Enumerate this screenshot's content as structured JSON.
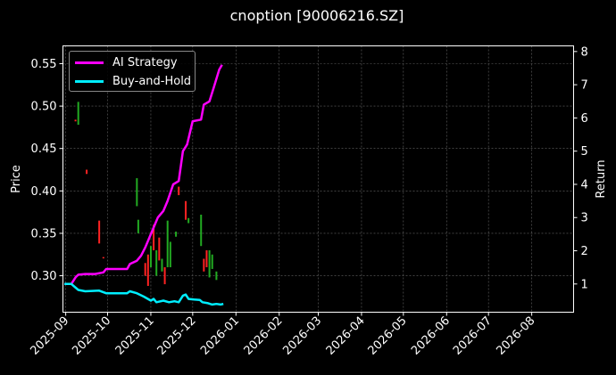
{
  "chart_data": {
    "type": "line",
    "title": "cnoption [90006216.SZ]",
    "xlabel": "",
    "ylabel": "Price",
    "y2label": "Return",
    "x_ticks": [
      "2025-09",
      "2025-10",
      "2025-11",
      "2025-12",
      "2026-01",
      "2026-02",
      "2026-03",
      "2026-04",
      "2026-05",
      "2026-06",
      "2026-07",
      "2026-08"
    ],
    "xlim": [
      "2025-08-30",
      "2026-08-31"
    ],
    "ylim": [
      0.257,
      0.571
    ],
    "y_ticks": [
      0.3,
      0.35,
      0.4,
      0.45,
      0.5,
      0.55
    ],
    "y2lim": [
      0.15,
      8.17
    ],
    "y2_ticks": [
      1,
      2,
      3,
      4,
      5,
      6,
      7,
      8
    ],
    "grid": true,
    "legend_position": "upper left",
    "series": [
      {
        "name": "AI Strategy",
        "color": "#ff00ff",
        "axis": "return",
        "points": [
          [
            "2025-08-31",
            1.0
          ],
          [
            "2025-09-05",
            1.0
          ],
          [
            "2025-09-08",
            1.2
          ],
          [
            "2025-09-10",
            1.28
          ],
          [
            "2025-09-15",
            1.3
          ],
          [
            "2025-09-22",
            1.3
          ],
          [
            "2025-09-28",
            1.35
          ],
          [
            "2025-09-30",
            1.45
          ],
          [
            "2025-10-08",
            1.45
          ],
          [
            "2025-10-15",
            1.45
          ],
          [
            "2025-10-17",
            1.6
          ],
          [
            "2025-10-22",
            1.7
          ],
          [
            "2025-10-25",
            1.85
          ],
          [
            "2025-10-28",
            2.1
          ],
          [
            "2025-10-31",
            2.4
          ],
          [
            "2025-11-03",
            2.7
          ],
          [
            "2025-11-06",
            3.0
          ],
          [
            "2025-11-10",
            3.2
          ],
          [
            "2025-11-13",
            3.5
          ],
          [
            "2025-11-17",
            4.0
          ],
          [
            "2025-11-21",
            4.1
          ],
          [
            "2025-11-24",
            5.0
          ],
          [
            "2025-11-27",
            5.2
          ],
          [
            "2025-12-01",
            5.9
          ],
          [
            "2025-12-07",
            5.95
          ],
          [
            "2025-12-09",
            6.4
          ],
          [
            "2025-12-13",
            6.5
          ],
          [
            "2025-12-16",
            6.9
          ],
          [
            "2025-12-20",
            7.45
          ],
          [
            "2025-12-22",
            7.6
          ]
        ]
      },
      {
        "name": "Buy-and-Hold",
        "color": "#00eeff",
        "axis": "return",
        "points": [
          [
            "2025-08-31",
            1.0
          ],
          [
            "2025-09-05",
            1.0
          ],
          [
            "2025-09-10",
            0.82
          ],
          [
            "2025-09-15",
            0.78
          ],
          [
            "2025-09-25",
            0.8
          ],
          [
            "2025-09-30",
            0.72
          ],
          [
            "2025-10-10",
            0.72
          ],
          [
            "2025-10-15",
            0.72
          ],
          [
            "2025-10-17",
            0.78
          ],
          [
            "2025-10-22",
            0.72
          ],
          [
            "2025-10-27",
            0.62
          ],
          [
            "2025-11-01",
            0.5
          ],
          [
            "2025-11-03",
            0.55
          ],
          [
            "2025-11-05",
            0.45
          ],
          [
            "2025-11-10",
            0.5
          ],
          [
            "2025-11-14",
            0.45
          ],
          [
            "2025-11-18",
            0.48
          ],
          [
            "2025-11-21",
            0.45
          ],
          [
            "2025-11-24",
            0.65
          ],
          [
            "2025-11-26",
            0.68
          ],
          [
            "2025-11-28",
            0.55
          ],
          [
            "2025-12-02",
            0.53
          ],
          [
            "2025-12-06",
            0.52
          ],
          [
            "2025-12-08",
            0.45
          ],
          [
            "2025-12-12",
            0.42
          ],
          [
            "2025-12-15",
            0.38
          ],
          [
            "2025-12-18",
            0.4
          ],
          [
            "2025-12-21",
            0.38
          ],
          [
            "2025-12-23",
            0.4
          ]
        ]
      }
    ],
    "candles": [
      {
        "date": "2025-09-08",
        "open": 0.484,
        "close": 0.482,
        "color": "#ff2222"
      },
      {
        "date": "2025-09-10",
        "open": 0.505,
        "close": 0.478,
        "color": "#22aa22"
      },
      {
        "date": "2025-09-16",
        "open": 0.425,
        "close": 0.42,
        "color": "#ff2222"
      },
      {
        "date": "2025-09-25",
        "open": 0.365,
        "close": 0.338,
        "color": "#ff2222"
      },
      {
        "date": "2025-09-28",
        "open": 0.322,
        "close": 0.321,
        "color": "#ff2222"
      },
      {
        "date": "2025-10-22",
        "open": 0.415,
        "close": 0.382,
        "color": "#22aa22"
      },
      {
        "date": "2025-10-23",
        "open": 0.366,
        "close": 0.35,
        "color": "#22aa22"
      },
      {
        "date": "2025-10-28",
        "open": 0.315,
        "close": 0.3,
        "color": "#ff2222"
      },
      {
        "date": "2025-10-30",
        "open": 0.325,
        "close": 0.288,
        "color": "#ff2222"
      },
      {
        "date": "2025-11-01",
        "open": 0.335,
        "close": 0.31,
        "color": "#22aa22"
      },
      {
        "date": "2025-11-03",
        "open": 0.36,
        "close": 0.33,
        "color": "#ff2222"
      },
      {
        "date": "2025-11-05",
        "open": 0.33,
        "close": 0.3,
        "color": "#22aa22"
      },
      {
        "date": "2025-11-07",
        "open": 0.345,
        "close": 0.318,
        "color": "#ff2222"
      },
      {
        "date": "2025-11-09",
        "open": 0.32,
        "close": 0.305,
        "color": "#22aa22"
      },
      {
        "date": "2025-11-11",
        "open": 0.31,
        "close": 0.29,
        "color": "#ff2222"
      },
      {
        "date": "2025-11-13",
        "open": 0.365,
        "close": 0.31,
        "color": "#22aa22"
      },
      {
        "date": "2025-11-15",
        "open": 0.34,
        "close": 0.31,
        "color": "#22aa22"
      },
      {
        "date": "2025-11-19",
        "open": 0.352,
        "close": 0.346,
        "color": "#22aa22"
      },
      {
        "date": "2025-11-21",
        "open": 0.405,
        "close": 0.395,
        "color": "#ff2222"
      },
      {
        "date": "2025-11-26",
        "open": 0.388,
        "close": 0.366,
        "color": "#ff2222"
      },
      {
        "date": "2025-11-28",
        "open": 0.368,
        "close": 0.362,
        "color": "#22aa22"
      },
      {
        "date": "2025-12-07",
        "open": 0.372,
        "close": 0.335,
        "color": "#22aa22"
      },
      {
        "date": "2025-12-09",
        "open": 0.32,
        "close": 0.305,
        "color": "#ff2222"
      },
      {
        "date": "2025-12-11",
        "open": 0.33,
        "close": 0.31,
        "color": "#ff2222"
      },
      {
        "date": "2025-12-13",
        "open": 0.33,
        "close": 0.298,
        "color": "#22aa22"
      },
      {
        "date": "2025-12-15",
        "open": 0.325,
        "close": 0.308,
        "color": "#22aa22"
      },
      {
        "date": "2025-12-18",
        "open": 0.305,
        "close": 0.295,
        "color": "#22aa22"
      }
    ]
  }
}
